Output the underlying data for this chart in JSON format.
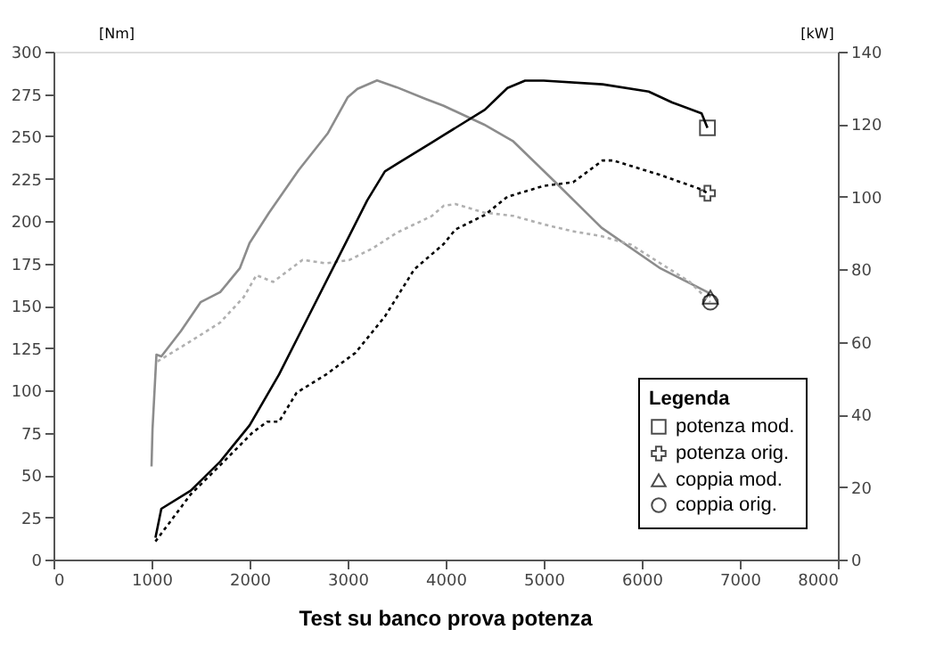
{
  "chart_data": {
    "type": "line",
    "title": "Test su banco prova potenza",
    "ylabel": "[Nm]",
    "y2label": "[kW]",
    "legend_title": "Legenda",
    "legend": "bottom right",
    "grid": false,
    "xlim": [
      0,
      8000
    ],
    "xticks": [
      0,
      1000,
      2000,
      3000,
      4000,
      5000,
      6000,
      7000,
      8000
    ],
    "ylim": [
      0,
      300
    ],
    "yticks": [
      0,
      25,
      50,
      75,
      100,
      125,
      150,
      175,
      200,
      225,
      250,
      275,
      300
    ],
    "y2lim": [
      0,
      140
    ],
    "y2ticks": [
      0,
      20,
      40,
      60,
      80,
      100,
      120,
      140
    ],
    "series": [
      {
        "name": "potenza mod.",
        "color": "#000000",
        "axis": "y2",
        "line_style": "solid",
        "x": [
          1040,
          1100,
          1400,
          1700,
          2000,
          2300,
          2600,
          2900,
          3200,
          3380,
          3500,
          3860,
          3980,
          4100,
          4400,
          4630,
          4810,
          5000,
          5600,
          6070,
          6310,
          6610,
          6670
        ],
        "values": [
          6,
          14,
          19,
          27,
          37,
          51,
          67,
          83,
          99,
          107,
          109,
          115,
          117,
          119,
          124,
          130,
          132,
          132,
          131,
          129,
          126,
          123,
          119
        ]
      },
      {
        "name": "potenza orig.",
        "color": "#000000",
        "axis": "y2",
        "line_style": "dotted",
        "x": [
          1040,
          1400,
          1700,
          2030,
          2180,
          2300,
          2480,
          2780,
          3080,
          3380,
          3680,
          3980,
          4100,
          4400,
          4630,
          5000,
          5300,
          5600,
          5710,
          6190,
          6610,
          6670
        ],
        "values": [
          5,
          18,
          26,
          35,
          38,
          38,
          46,
          51,
          57,
          67,
          80,
          87,
          91,
          95,
          100,
          103,
          104,
          110,
          110,
          106,
          102,
          101
        ]
      },
      {
        "name": "coppia mod.",
        "color": "#8c8c8c",
        "axis": "y",
        "line_style": "solid",
        "x": [
          1000,
          1010,
          1050,
          1100,
          1300,
          1500,
          1700,
          1900,
          2000,
          2200,
          2500,
          2800,
          3000,
          3100,
          3300,
          3500,
          3800,
          3980,
          4390,
          4690,
          5170,
          5590,
          6190,
          6670,
          6700
        ],
        "values": [
          55,
          77,
          121,
          120,
          135,
          152,
          158,
          172,
          187,
          205,
          230,
          252,
          273,
          278,
          283,
          279,
          272,
          268,
          257,
          247,
          220,
          196,
          172,
          158,
          155
        ]
      },
      {
        "name": "coppia orig.",
        "color": "#b0b0b0",
        "axis": "y",
        "line_style": "dotted",
        "x": [
          1060,
          1400,
          1700,
          1940,
          2070,
          2240,
          2540,
          2780,
          3020,
          3260,
          3500,
          3860,
          3980,
          4100,
          4390,
          4690,
          5000,
          5290,
          5590,
          5890,
          6190,
          6490,
          6700
        ],
        "values": [
          117,
          129,
          140,
          155,
          168,
          164,
          177,
          175,
          177,
          184,
          193,
          203,
          209,
          210,
          205,
          203,
          198,
          194,
          191,
          186,
          175,
          164,
          152
        ]
      }
    ]
  }
}
